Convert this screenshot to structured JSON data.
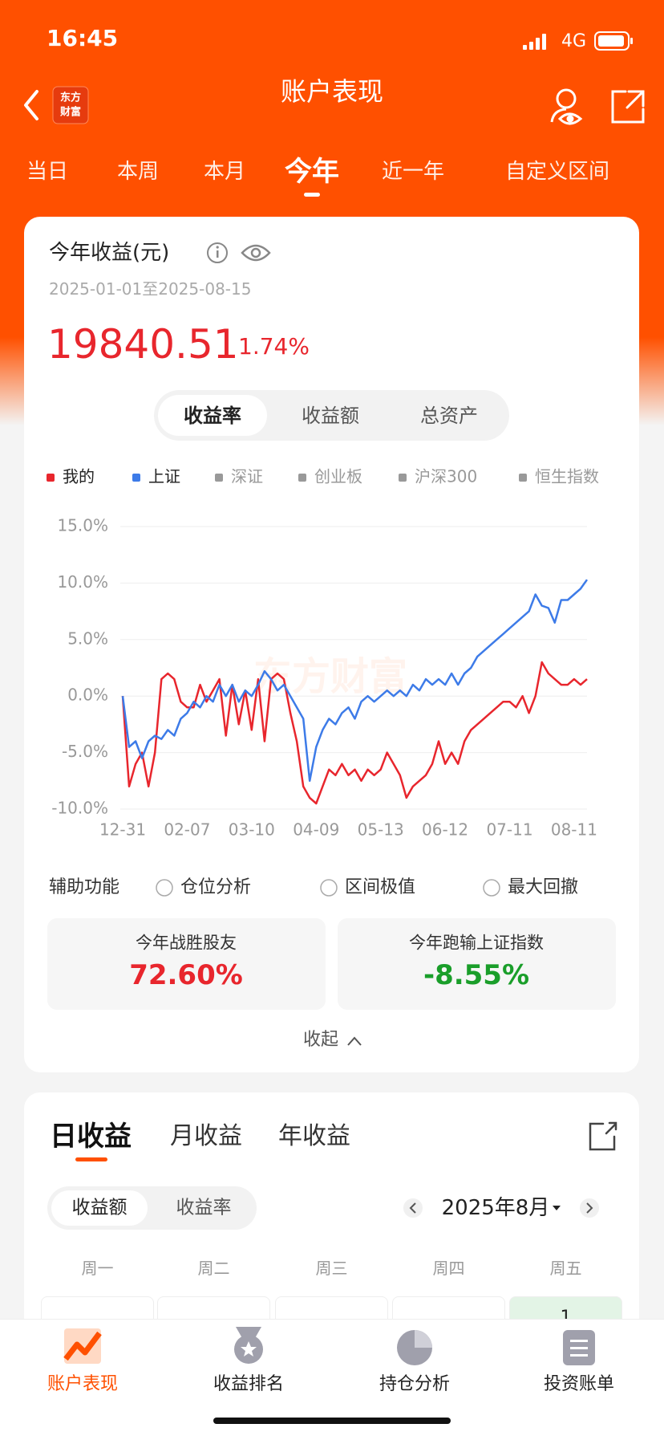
{
  "status_bar": {
    "time": "16:45",
    "network": "4G"
  },
  "header": {
    "title": "账户表现",
    "logo_lines": [
      "东方",
      "财富"
    ]
  },
  "period_tabs": {
    "items": [
      "当日",
      "本周",
      "本月",
      "今年",
      "近一年",
      "自定义区间"
    ],
    "active": 3
  },
  "summary": {
    "title": "今年收益(元)",
    "date_range": "2025-01-01至2025-08-15",
    "amount": "19840.51",
    "rate": "1.74%"
  },
  "metric_tabs": {
    "items": [
      "收益率",
      "收益额",
      "总资产"
    ],
    "active": 0
  },
  "chart": {
    "type": "line",
    "watermark": "东方财富",
    "categories": [
      "12-31",
      null,
      null,
      null,
      null,
      null,
      null,
      null,
      null,
      null,
      "02-07",
      null,
      null,
      null,
      null,
      null,
      null,
      null,
      null,
      null,
      "03-10",
      null,
      null,
      null,
      null,
      null,
      null,
      null,
      null,
      null,
      "04-09",
      null,
      null,
      null,
      null,
      null,
      null,
      null,
      null,
      null,
      "05-13",
      null,
      null,
      null,
      null,
      null,
      null,
      null,
      null,
      null,
      "06-12",
      null,
      null,
      null,
      null,
      null,
      null,
      null,
      null,
      null,
      "07-11",
      null,
      null,
      null,
      null,
      null,
      null,
      null,
      null,
      null,
      "08-11",
      null,
      null
    ],
    "series": [
      {
        "name": "我的",
        "color": "#e8262d",
        "values": [
          0,
          -8,
          -6,
          -5,
          -8,
          -5,
          1.5,
          2,
          1.5,
          -0.5,
          -1,
          -1,
          1,
          -0.5,
          0.5,
          1.5,
          -3.5,
          1,
          -2.5,
          0.5,
          -3,
          1.5,
          -4,
          1.5,
          2,
          1.5,
          -1.5,
          -4,
          -8,
          -9,
          -9.5,
          -8,
          -6.5,
          -7,
          -6,
          -7,
          -6.5,
          -7.5,
          -6.5,
          -7,
          -6.5,
          -5,
          -6,
          -7,
          -9,
          -8,
          -7.5,
          -7,
          -6,
          -4,
          -6,
          -5,
          -6,
          -4,
          -3,
          -2.5,
          -2,
          -1.5,
          -1,
          -0.5,
          -0.5,
          -1,
          0,
          -1.5,
          0,
          3,
          2,
          1.5,
          1,
          1,
          1.5,
          1,
          1.5
        ]
      },
      {
        "name": "上证",
        "color": "#3d7be8",
        "values": [
          0,
          -4.5,
          -4,
          -5.5,
          -4,
          -3.5,
          -3.8,
          -3,
          -3.5,
          -2,
          -1.5,
          -0.5,
          -1,
          0,
          -0.5,
          1,
          0,
          1,
          -0.5,
          0.5,
          0,
          1,
          2.2,
          1.5,
          0.5,
          1,
          0,
          -1,
          -2,
          -7.5,
          -4.5,
          -3,
          -2,
          -2.5,
          -1.5,
          -1,
          -2,
          -0.5,
          0,
          -0.5,
          0,
          0.5,
          0,
          0.5,
          0,
          1,
          0.5,
          1.5,
          1,
          1.5,
          1,
          2,
          1,
          2,
          2.5,
          3.5,
          4,
          4.5,
          5,
          5.5,
          6,
          6.5,
          7,
          7.5,
          9,
          8,
          7.8,
          6.5,
          8.5,
          8.5,
          9,
          9.5,
          10.3
        ]
      }
    ],
    "legend_inactive": [
      {
        "name": "深证",
        "color": "#999999"
      },
      {
        "name": "创业板",
        "color": "#999999"
      },
      {
        "name": "沪深300",
        "color": "#999999"
      },
      {
        "name": "恒生指数",
        "color": "#999999"
      }
    ],
    "ylim": [
      -10,
      15
    ],
    "yticks": [
      {
        "value": 15,
        "label": "15.0%"
      },
      {
        "value": 10,
        "label": "10.0%"
      },
      {
        "value": 5,
        "label": "5.0%"
      },
      {
        "value": 0,
        "label": "0.0%"
      },
      {
        "value": -5,
        "label": "-5.0%"
      },
      {
        "value": -10,
        "label": "-10.0%"
      }
    ],
    "grid": true
  },
  "aux": {
    "label": "辅助功能",
    "options": [
      "仓位分析",
      "区间极值",
      "最大回撤"
    ]
  },
  "stats": [
    {
      "label": "今年战胜股友",
      "value": "72.60%",
      "color": "#e8262d"
    },
    {
      "label": "今年跑输上证指数",
      "value": "-8.55%",
      "color": "#1a9e2a"
    }
  ],
  "collapse": "收起",
  "earnings": {
    "tabs": [
      "日收益",
      "月收益",
      "年收益"
    ],
    "active": 0,
    "mode_tabs": [
      "收益额",
      "收益率"
    ],
    "mode_active": 0,
    "month": "2025年8月",
    "weekdays": [
      "周一",
      "周二",
      "周三",
      "周四",
      "周五"
    ],
    "first_day": "1"
  },
  "bottom_nav": {
    "items": [
      "账户表现",
      "收益排名",
      "持仓分析",
      "投资账单"
    ],
    "active": 0
  }
}
